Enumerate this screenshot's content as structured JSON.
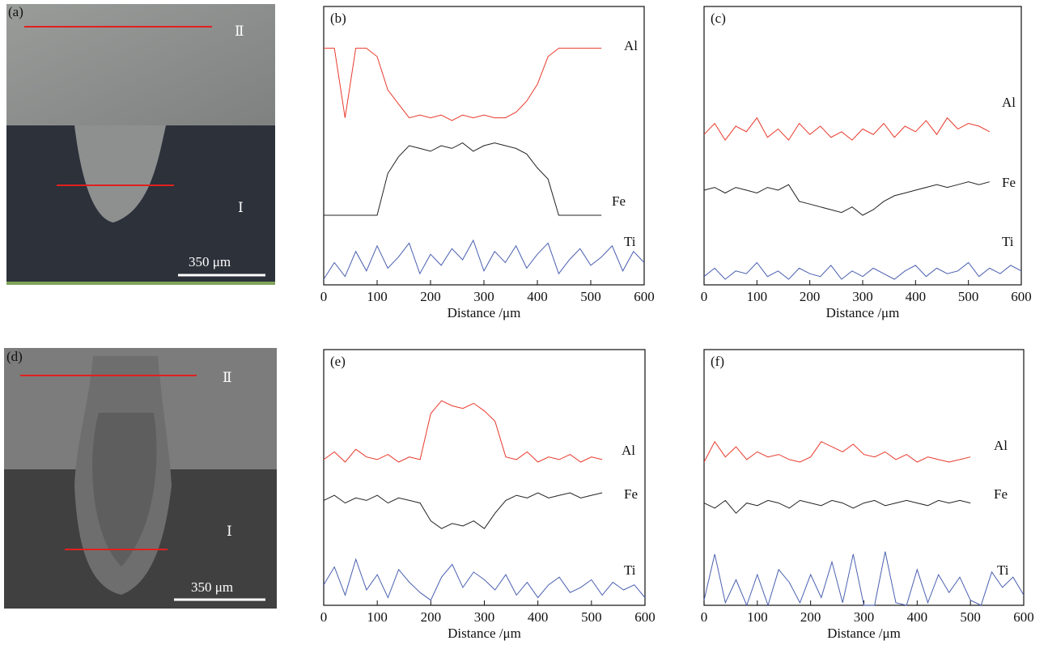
{
  "images": [
    {
      "label": "(a)",
      "upper_region": "Ⅱ",
      "lower_region": "Ⅰ",
      "scale_bar": "350 μm"
    },
    {
      "label": "(d)",
      "upper_region": "Ⅱ",
      "lower_region": "Ⅰ",
      "scale_bar": "350 μm"
    }
  ],
  "chart_data": [
    {
      "type": "line",
      "label": "(b)",
      "x_label": "Distance /μm",
      "xlim": [
        0,
        600
      ],
      "xticks": [
        0,
        100,
        200,
        300,
        400,
        500,
        600
      ],
      "ylim": [
        0,
        100
      ],
      "x": [
        0,
        20,
        40,
        60,
        80,
        100,
        120,
        140,
        160,
        180,
        200,
        220,
        240,
        260,
        280,
        300,
        320,
        340,
        360,
        380,
        400,
        420,
        440,
        460,
        480,
        500,
        520,
        540,
        560,
        580,
        600
      ],
      "series": [
        {
          "name": "Al",
          "color": "#e8392b",
          "values": [
            85,
            85,
            60,
            85,
            85,
            82,
            70,
            65,
            60,
            61,
            60,
            61,
            59,
            61,
            60,
            61,
            60,
            60,
            62,
            66,
            72,
            82,
            85,
            85,
            85,
            85,
            85,
            null,
            null,
            null,
            null
          ]
        },
        {
          "name": "Fe",
          "color": "#222222",
          "values": [
            25,
            25,
            25,
            25,
            25,
            25,
            40,
            46,
            50,
            49,
            48,
            50,
            49,
            51,
            48,
            50,
            51,
            50,
            49,
            47,
            42,
            38,
            25,
            25,
            25,
            25,
            25,
            null,
            null,
            null,
            null
          ]
        },
        {
          "name": "Ti",
          "color": "#4a5fb0",
          "values": [
            2,
            8,
            3,
            12,
            5,
            14,
            6,
            10,
            15,
            4,
            11,
            7,
            13,
            9,
            16,
            5,
            12,
            8,
            14,
            6,
            11,
            15,
            4,
            9,
            13,
            7,
            10,
            14,
            5,
            12,
            8
          ]
        }
      ]
    },
    {
      "type": "line",
      "label": "(c)",
      "x_label": "Distance /μm",
      "xlim": [
        0,
        600
      ],
      "xticks": [
        0,
        100,
        200,
        300,
        400,
        500,
        600
      ],
      "ylim": [
        0,
        100
      ],
      "x": [
        0,
        20,
        40,
        60,
        80,
        100,
        120,
        140,
        160,
        180,
        200,
        220,
        240,
        260,
        280,
        300,
        320,
        340,
        360,
        380,
        400,
        420,
        440,
        460,
        480,
        500,
        520,
        540,
        560,
        580,
        600
      ],
      "series": [
        {
          "name": "Al",
          "color": "#e8392b",
          "values": [
            54,
            58,
            52,
            57,
            55,
            60,
            53,
            56,
            52,
            58,
            54,
            57,
            53,
            55,
            52,
            56,
            54,
            58,
            53,
            57,
            55,
            59,
            54,
            60,
            56,
            58,
            57,
            55,
            null,
            null,
            null
          ]
        },
        {
          "name": "Fe",
          "color": "#222222",
          "values": [
            34,
            35,
            33,
            35,
            34,
            33,
            35,
            34,
            36,
            30,
            29,
            28,
            27,
            26,
            28,
            25,
            27,
            30,
            32,
            33,
            34,
            35,
            36,
            35,
            36,
            37,
            36,
            37,
            null,
            null,
            null
          ]
        },
        {
          "name": "Ti",
          "color": "#4a5fb0",
          "values": [
            3,
            6,
            2,
            5,
            4,
            8,
            3,
            5,
            2,
            6,
            4,
            3,
            7,
            2,
            5,
            3,
            6,
            4,
            2,
            5,
            7,
            3,
            6,
            4,
            5,
            8,
            3,
            6,
            4,
            7,
            5
          ]
        }
      ]
    },
    {
      "type": "line",
      "label": "(e)",
      "x_label": "Distance /μm",
      "xlim": [
        0,
        600
      ],
      "xticks": [
        0,
        100,
        200,
        300,
        400,
        500,
        600
      ],
      "ylim": [
        0,
        100
      ],
      "x": [
        0,
        20,
        40,
        60,
        80,
        100,
        120,
        140,
        160,
        180,
        200,
        220,
        240,
        260,
        280,
        300,
        320,
        340,
        360,
        380,
        400,
        420,
        440,
        460,
        480,
        500,
        520,
        540,
        560,
        580,
        600
      ],
      "series": [
        {
          "name": "Al",
          "color": "#e8392b",
          "values": [
            57,
            60,
            56,
            61,
            58,
            57,
            59,
            56,
            58,
            57,
            75,
            80,
            78,
            77,
            79,
            76,
            72,
            58,
            57,
            60,
            56,
            58,
            57,
            59,
            56,
            58,
            57,
            null,
            null,
            null,
            null
          ]
        },
        {
          "name": "Fe",
          "color": "#222222",
          "values": [
            41,
            43,
            40,
            42,
            41,
            43,
            40,
            42,
            41,
            40,
            33,
            30,
            32,
            31,
            33,
            30,
            36,
            41,
            43,
            42,
            44,
            42,
            43,
            44,
            42,
            43,
            44,
            null,
            null,
            null,
            null
          ]
        },
        {
          "name": "Ti",
          "color": "#4a5fb0",
          "values": [
            8,
            15,
            4,
            18,
            6,
            12,
            3,
            14,
            9,
            5,
            2,
            11,
            16,
            7,
            13,
            10,
            6,
            12,
            4,
            9,
            3,
            8,
            11,
            5,
            7,
            10,
            4,
            9,
            6,
            8,
            3
          ]
        }
      ]
    },
    {
      "type": "line",
      "label": "(f)",
      "x_label": "Distance /μm",
      "xlim": [
        0,
        600
      ],
      "xticks": [
        0,
        100,
        200,
        300,
        400,
        500,
        600
      ],
      "ylim": [
        0,
        100
      ],
      "x": [
        0,
        20,
        40,
        60,
        80,
        100,
        120,
        140,
        160,
        180,
        200,
        220,
        240,
        260,
        280,
        300,
        320,
        340,
        360,
        380,
        400,
        420,
        440,
        460,
        480,
        500,
        520,
        540,
        560,
        580,
        600
      ],
      "series": [
        {
          "name": "Al",
          "color": "#e8392b",
          "values": [
            56,
            64,
            58,
            62,
            57,
            60,
            58,
            59,
            57,
            56,
            58,
            64,
            62,
            60,
            63,
            59,
            58,
            60,
            57,
            59,
            56,
            58,
            57,
            56,
            57,
            58,
            null,
            null,
            null,
            null,
            null
          ]
        },
        {
          "name": "Fe",
          "color": "#222222",
          "values": [
            40,
            38,
            41,
            36,
            40,
            39,
            41,
            40,
            38,
            41,
            40,
            39,
            41,
            40,
            38,
            40,
            41,
            39,
            40,
            41,
            40,
            39,
            41,
            40,
            41,
            40,
            null,
            null,
            null,
            null,
            null
          ]
        },
        {
          "name": "Ti",
          "color": "#4a5fb0",
          "values": [
            2,
            20,
            1,
            10,
            0,
            12,
            0,
            14,
            9,
            1,
            12,
            3,
            17,
            1,
            20,
            0,
            0,
            21,
            1,
            0,
            14,
            1,
            12,
            5,
            11,
            2,
            0,
            13,
            7,
            11,
            4
          ]
        }
      ]
    }
  ]
}
